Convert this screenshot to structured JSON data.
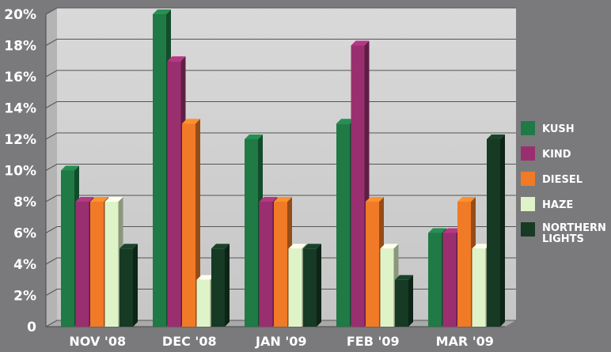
{
  "chart_data": {
    "type": "bar",
    "title": "",
    "xlabel": "",
    "ylabel": "",
    "ylim": [
      0,
      20
    ],
    "y_ticks": [
      "0",
      "2%",
      "4%",
      "6%",
      "8%",
      "10%",
      "12%",
      "14%",
      "16%",
      "18%",
      "20%"
    ],
    "y_tick_values": [
      0,
      2,
      4,
      6,
      8,
      10,
      12,
      14,
      16,
      18,
      20
    ],
    "categories": [
      "NOV '08",
      "DEC '08",
      "JAN '09",
      "FEB '09",
      "MAR '09"
    ],
    "grid": true,
    "legend_position": "right",
    "series": [
      {
        "name": "KUSH",
        "color": "#1f7a46",
        "values": [
          10,
          20,
          12,
          13,
          6
        ]
      },
      {
        "name": "KIND",
        "color": "#9a2f70",
        "values": [
          8,
          17,
          8,
          18,
          6
        ]
      },
      {
        "name": "DIESEL",
        "color": "#f07a26",
        "values": [
          8,
          13,
          8,
          8,
          8
        ]
      },
      {
        "name": "HAZE",
        "color": "#dff3c8",
        "values": [
          8,
          3,
          5,
          5,
          5
        ]
      },
      {
        "name": "NORTHERN LIGHTS",
        "color": "#163a24",
        "values": [
          5,
          5,
          5,
          3,
          12
        ]
      }
    ]
  }
}
